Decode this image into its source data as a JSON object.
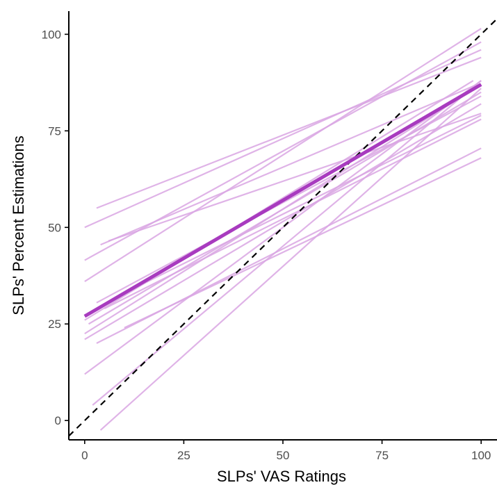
{
  "chart_data": {
    "type": "line",
    "xlabel": "SLPs' VAS Ratings",
    "ylabel": "SLPs' Percent Estimations",
    "xlim": [
      -4,
      104
    ],
    "ylim": [
      -5,
      106
    ],
    "x_ticks": [
      0,
      25,
      50,
      75,
      100
    ],
    "x_tick_labels": [
      "0",
      "25",
      "50",
      "75",
      "100"
    ],
    "y_ticks": [
      0,
      25,
      50,
      75,
      100
    ],
    "y_tick_labels": [
      "0",
      "25",
      "50",
      "75",
      "100"
    ],
    "grid": false,
    "legend": "none",
    "colors": {
      "individual": "#d9a6e3",
      "mean": "#a83bbf",
      "identity": "#000000",
      "axis": "#000000",
      "tick_label": "#4d4d4d"
    },
    "series": [
      {
        "role": "identity",
        "style": "dashed",
        "x": [
          -4,
          104
        ],
        "y": [
          -4,
          104
        ]
      },
      {
        "role": "mean",
        "x": [
          0,
          100
        ],
        "y": [
          27,
          87
        ]
      },
      {
        "role": "individual",
        "x": [
          3,
          100
        ],
        "y": [
          55,
          94
        ]
      },
      {
        "role": "individual",
        "x": [
          0,
          100
        ],
        "y": [
          50,
          96
        ]
      },
      {
        "role": "individual",
        "x": [
          0,
          100
        ],
        "y": [
          41.5,
          98
        ]
      },
      {
        "role": "individual",
        "x": [
          0,
          100
        ],
        "y": [
          36,
          101.5
        ]
      },
      {
        "role": "individual",
        "x": [
          4,
          99
        ],
        "y": [
          45.5,
          87
        ]
      },
      {
        "role": "individual",
        "x": [
          6,
          100
        ],
        "y": [
          46.5,
          79.5
        ]
      },
      {
        "role": "individual",
        "x": [
          0,
          98
        ],
        "y": [
          26,
          88
        ]
      },
      {
        "role": "individual",
        "x": [
          1,
          100
        ],
        "y": [
          25,
          85
        ]
      },
      {
        "role": "individual",
        "x": [
          0,
          100
        ],
        "y": [
          22.5,
          87
        ]
      },
      {
        "role": "individual",
        "x": [
          0,
          100
        ],
        "y": [
          21,
          82
        ]
      },
      {
        "role": "individual",
        "x": [
          3,
          100
        ],
        "y": [
          30.5,
          84
        ]
      },
      {
        "role": "individual",
        "x": [
          5,
          100
        ],
        "y": [
          29,
          78
        ]
      },
      {
        "role": "individual",
        "x": [
          3,
          100
        ],
        "y": [
          20,
          70.5
        ]
      },
      {
        "role": "individual",
        "x": [
          0,
          100
        ],
        "y": [
          12,
          88
        ]
      },
      {
        "role": "individual",
        "x": [
          12,
          100
        ],
        "y": [
          34,
          79
        ]
      },
      {
        "role": "individual",
        "x": [
          10,
          100
        ],
        "y": [
          24,
          68
        ]
      },
      {
        "role": "individual",
        "x": [
          2,
          100
        ],
        "y": [
          4,
          88
        ]
      },
      {
        "role": "individual",
        "x": [
          4,
          100
        ],
        "y": [
          -2.5,
          86
        ]
      }
    ]
  }
}
